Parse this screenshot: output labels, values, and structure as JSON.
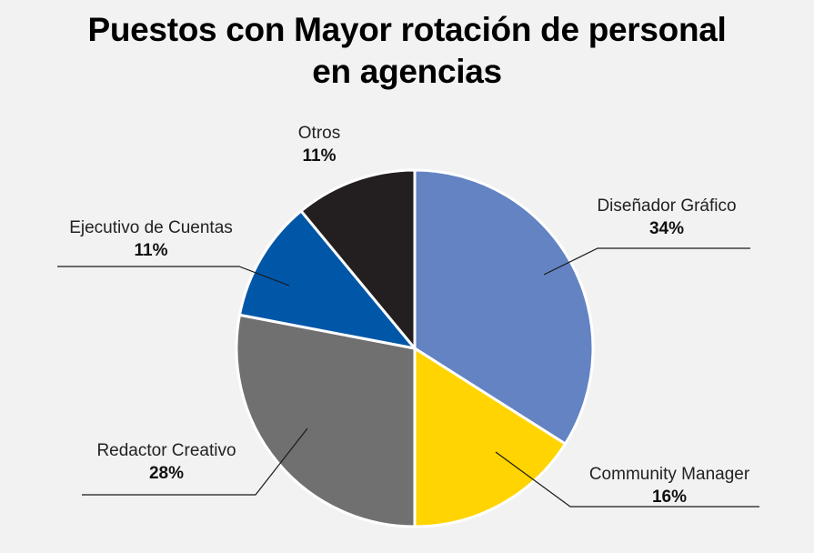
{
  "chart_data": {
    "type": "pie",
    "title_lines": [
      "Puestos con Mayor rotación de personal",
      "en agencias"
    ],
    "categories": [
      "Diseñador Gráfico",
      "Community Manager",
      "Redactor Creativo",
      "Ejecutivo de Cuentas",
      "Otros"
    ],
    "values": [
      34,
      16,
      28,
      11,
      11
    ],
    "value_labels": [
      "34%",
      "16%",
      "28%",
      "11%",
      "11%"
    ],
    "colors": [
      "#6383c3",
      "#ffd400",
      "#707071",
      "#0057a8",
      "#231f20"
    ],
    "start_angle_deg": 0,
    "direction": "clockwise"
  }
}
